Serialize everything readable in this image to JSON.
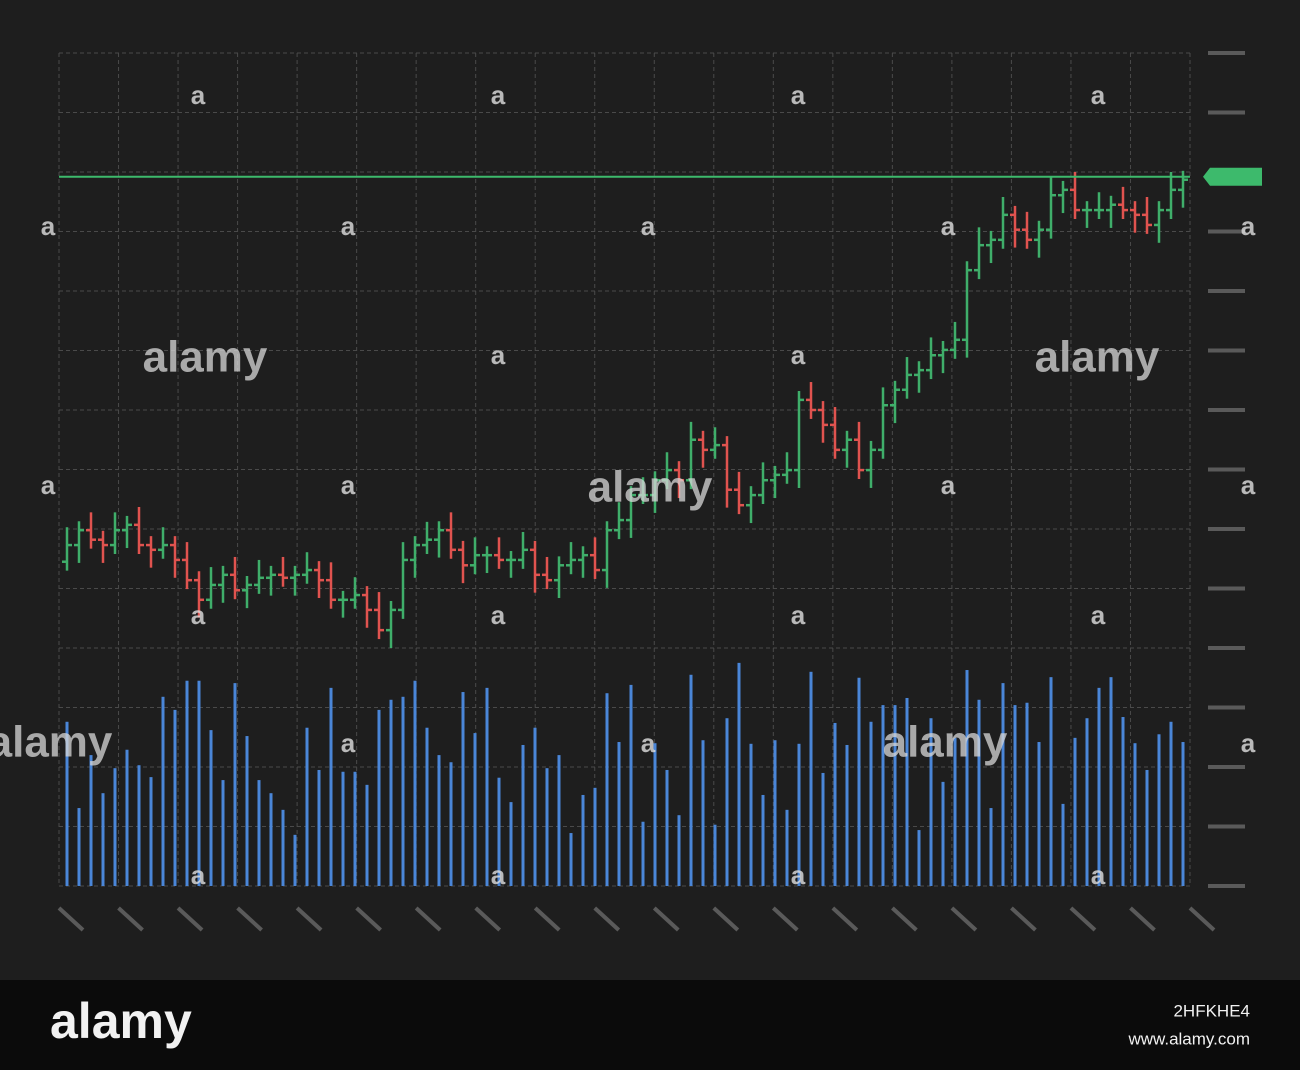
{
  "chart_data": {
    "type": "ohlc",
    "categories": [
      null,
      null,
      null,
      null,
      null,
      null,
      null,
      null,
      null,
      null,
      null,
      null,
      null,
      null,
      null,
      null,
      null,
      null,
      null,
      null,
      null,
      null,
      null,
      null,
      null,
      null,
      null,
      null,
      null,
      null,
      null,
      null,
      null,
      null,
      null,
      null,
      null,
      null,
      null,
      null,
      null,
      null,
      null,
      null,
      null,
      null,
      null,
      null,
      null,
      null,
      null,
      null,
      null,
      null,
      null,
      null,
      null,
      null,
      null,
      null,
      null,
      null,
      null,
      null,
      null,
      null,
      null,
      null,
      null,
      null,
      null,
      null,
      null,
      null,
      null,
      null,
      null,
      null,
      null,
      null,
      null,
      null,
      null,
      null,
      null,
      null,
      null,
      null,
      null,
      null,
      null,
      null,
      null,
      null
    ],
    "open": [
      5.45,
      5.73,
      5.98,
      5.82,
      5.73,
      5.98,
      6.07,
      5.73,
      5.65,
      5.73,
      5.48,
      5.14,
      4.81,
      5.06,
      5.23,
      4.97,
      5.06,
      5.18,
      5.23,
      5.18,
      5.23,
      5.31,
      5.14,
      4.81,
      4.81,
      4.89,
      4.64,
      4.3,
      4.64,
      5.48,
      5.73,
      5.82,
      5.98,
      5.65,
      5.39,
      5.56,
      5.56,
      5.48,
      5.48,
      5.65,
      5.23,
      5.14,
      5.39,
      5.48,
      5.56,
      5.31,
      5.98,
      6.15,
      6.57,
      6.57,
      6.82,
      6.99,
      6.82,
      7.5,
      7.33,
      7.41,
      6.66,
      6.4,
      6.57,
      6.82,
      6.91,
      6.99,
      8.17,
      8.0,
      7.75,
      7.33,
      7.5,
      6.99,
      7.33,
      8.08,
      8.34,
      8.59,
      8.67,
      8.92,
      9.01,
      9.18,
      10.35,
      10.77,
      10.86,
      11.28,
      11.03,
      10.86,
      11.03,
      11.61,
      11.7,
      11.36,
      11.36,
      11.36,
      11.45,
      11.36,
      11.28,
      11.11,
      11.36,
      11.7
    ],
    "high": [
      6.03,
      6.13,
      6.28,
      5.97,
      6.28,
      6.22,
      6.37,
      5.88,
      6.03,
      5.88,
      5.78,
      5.29,
      5.36,
      5.38,
      5.53,
      5.21,
      5.48,
      5.38,
      5.53,
      5.38,
      5.61,
      5.46,
      5.44,
      4.96,
      5.19,
      5.04,
      4.94,
      4.79,
      5.78,
      5.88,
      6.12,
      6.13,
      6.28,
      5.8,
      5.86,
      5.71,
      5.86,
      5.63,
      5.95,
      5.8,
      5.53,
      5.54,
      5.78,
      5.71,
      5.86,
      6.13,
      6.45,
      6.72,
      6.87,
      6.97,
      7.29,
      7.14,
      7.8,
      7.65,
      7.71,
      7.56,
      6.96,
      6.72,
      7.12,
      7.06,
      7.29,
      8.32,
      8.47,
      8.15,
      8.05,
      7.65,
      7.8,
      7.48,
      8.38,
      8.49,
      8.89,
      8.82,
      9.22,
      9.16,
      9.48,
      10.5,
      11.07,
      11.01,
      11.58,
      11.43,
      11.33,
      11.18,
      11.91,
      11.85,
      12.0,
      11.51,
      11.66,
      11.6,
      11.75,
      11.51,
      11.58,
      11.51,
      12.0,
      12.02
    ],
    "low": [
      5.3,
      5.43,
      5.67,
      5.43,
      5.58,
      5.68,
      5.58,
      5.35,
      5.5,
      5.18,
      4.99,
      4.51,
      4.66,
      4.76,
      4.82,
      4.67,
      4.91,
      4.88,
      5.03,
      4.88,
      5.08,
      4.84,
      4.66,
      4.51,
      4.66,
      4.34,
      4.15,
      4.0,
      4.49,
      5.18,
      5.58,
      5.52,
      5.5,
      5.09,
      5.24,
      5.26,
      5.33,
      5.18,
      5.33,
      4.93,
      4.99,
      4.84,
      5.24,
      5.18,
      5.16,
      5.01,
      5.83,
      5.85,
      6.42,
      6.27,
      6.67,
      6.52,
      6.67,
      7.03,
      7.18,
      6.36,
      6.25,
      6.1,
      6.42,
      6.52,
      6.76,
      6.69,
      7.85,
      7.45,
      7.18,
      7.03,
      6.84,
      6.69,
      7.18,
      7.78,
      8.19,
      8.29,
      8.52,
      8.62,
      8.86,
      8.88,
      10.2,
      10.47,
      10.71,
      10.73,
      10.71,
      10.56,
      10.88,
      11.31,
      11.21,
      11.06,
      11.21,
      11.06,
      11.21,
      10.98,
      10.96,
      10.81,
      11.21,
      11.4
    ],
    "close": [
      5.73,
      5.98,
      5.82,
      5.73,
      5.98,
      6.07,
      5.73,
      5.65,
      5.73,
      5.48,
      5.14,
      4.81,
      5.06,
      5.23,
      4.97,
      5.06,
      5.18,
      5.23,
      5.18,
      5.23,
      5.31,
      5.14,
      4.81,
      4.81,
      4.89,
      4.64,
      4.3,
      4.64,
      5.48,
      5.73,
      5.82,
      5.98,
      5.65,
      5.39,
      5.56,
      5.56,
      5.48,
      5.48,
      5.65,
      5.23,
      5.14,
      5.39,
      5.48,
      5.56,
      5.31,
      5.98,
      6.15,
      6.57,
      6.57,
      6.82,
      6.99,
      6.82,
      7.5,
      7.33,
      7.41,
      6.66,
      6.4,
      6.57,
      6.82,
      6.91,
      6.99,
      8.17,
      8.0,
      7.75,
      7.33,
      7.5,
      6.99,
      7.33,
      8.08,
      8.34,
      8.59,
      8.67,
      8.92,
      9.01,
      9.18,
      10.35,
      10.77,
      10.86,
      11.28,
      11.03,
      10.86,
      11.03,
      11.61,
      11.7,
      11.36,
      11.36,
      11.36,
      11.45,
      11.36,
      11.28,
      11.11,
      11.36,
      11.7,
      11.87
    ],
    "volume": [
      2.76,
      1.31,
      2.2,
      1.56,
      1.98,
      2.29,
      2.03,
      1.83,
      3.18,
      2.96,
      3.45,
      3.45,
      2.62,
      1.78,
      3.41,
      2.52,
      1.78,
      1.56,
      1.28,
      0.86,
      2.66,
      1.95,
      3.33,
      1.92,
      1.92,
      1.7,
      2.96,
      3.13,
      3.18,
      3.45,
      2.66,
      2.2,
      2.08,
      3.26,
      2.57,
      3.33,
      1.82,
      1.41,
      2.37,
      2.66,
      1.98,
      2.2,
      0.89,
      1.53,
      1.65,
      3.24,
      2.42,
      3.38,
      1.08,
      2.4,
      1.95,
      1.19,
      3.55,
      2.45,
      1.03,
      2.82,
      3.75,
      2.39,
      1.53,
      2.45,
      1.28,
      2.39,
      3.6,
      1.9,
      2.74,
      2.37,
      3.5,
      2.76,
      3.04,
      3.04,
      3.16,
      0.94,
      2.82,
      1.75,
      2.49,
      3.63,
      3.13,
      1.31,
      3.41,
      3.04,
      3.08,
      2.42,
      3.51,
      1.38,
      2.49,
      2.82,
      3.33,
      3.51,
      2.84,
      2.4,
      1.95,
      2.55,
      2.76,
      2.42
    ],
    "ylim": [
      0,
      14
    ],
    "yticks": [
      0,
      1,
      2,
      3,
      4,
      5,
      6,
      7,
      8,
      9,
      10,
      11,
      12,
      13,
      14
    ],
    "grid": true,
    "up_color": "#3fae6a",
    "down_color": "#e0534f",
    "volume_color": "#4a86d8",
    "price_line": 11.92,
    "price_line_color": "#3dba6c"
  },
  "watermark": {
    "text": "alamy",
    "glyph": "a",
    "id": "2HFKHE4",
    "url": "www.alamy.com"
  }
}
